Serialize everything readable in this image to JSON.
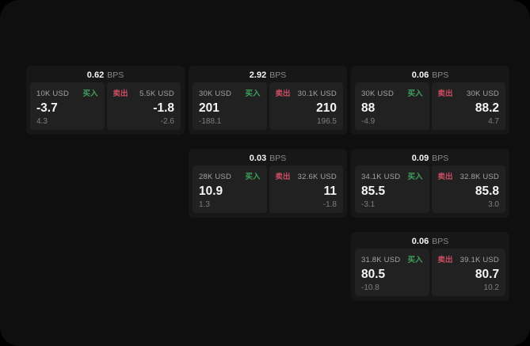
{
  "labels": {
    "buy": "买入",
    "sell": "卖出",
    "bps_unit": "BPS"
  },
  "colors": {
    "green": "#3fa05c",
    "red": "#ca4d63",
    "background": "#0f0f0f",
    "card": "#171717",
    "panel": "#212121"
  },
  "cards": [
    {
      "row": 1,
      "col": 1,
      "bps": "0.62",
      "buy": {
        "size": "10K USD",
        "price": "-3.7",
        "sub": "4.3"
      },
      "sell": {
        "size": "5.5K USD",
        "price": "-1.8",
        "sub": "-2.6"
      }
    },
    {
      "row": 1,
      "col": 2,
      "bps": "2.92",
      "buy": {
        "size": "30K USD",
        "price": "201",
        "sub": "-188.1"
      },
      "sell": {
        "size": "30.1K USD",
        "price": "210",
        "sub": "196.5"
      }
    },
    {
      "row": 1,
      "col": 3,
      "bps": "0.06",
      "buy": {
        "size": "30K USD",
        "price": "88",
        "sub": "-4.9"
      },
      "sell": {
        "size": "30K USD",
        "price": "88.2",
        "sub": "4.7"
      }
    },
    {
      "row": 2,
      "col": 2,
      "bps": "0.03",
      "buy": {
        "size": "28K USD",
        "price": "10.9",
        "sub": "1.3"
      },
      "sell": {
        "size": "32.6K USD",
        "price": "11",
        "sub": "-1.8"
      }
    },
    {
      "row": 2,
      "col": 3,
      "bps": "0.09",
      "buy": {
        "size": "34.1K USD",
        "price": "85.5",
        "sub": "-3.1"
      },
      "sell": {
        "size": "32.8K USD",
        "price": "85.8",
        "sub": "3.0"
      }
    },
    {
      "row": 3,
      "col": 3,
      "bps": "0.06",
      "buy": {
        "size": "31.8K USD",
        "price": "80.5",
        "sub": "-10.8"
      },
      "sell": {
        "size": "39.1K USD",
        "price": "80.7",
        "sub": "10.2"
      }
    }
  ]
}
